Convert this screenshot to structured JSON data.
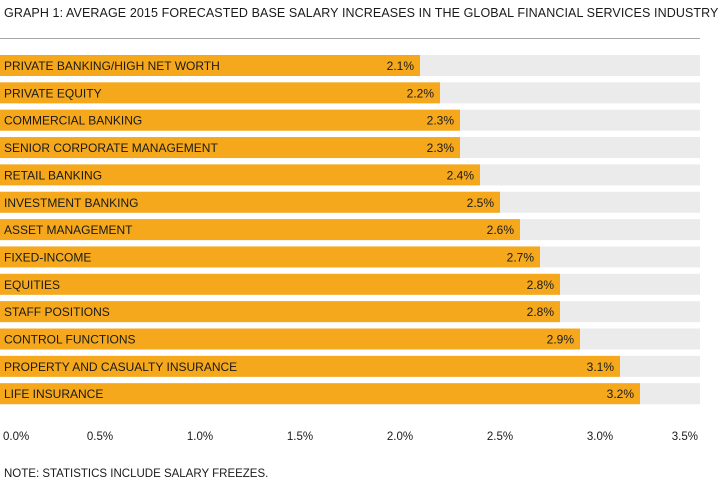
{
  "header": {
    "title": "GRAPH 1: AVERAGE 2015 FORECASTED BASE SALARY INCREASES IN THE GLOBAL FINANCIAL SERVICES INDUSTRY"
  },
  "footer": {
    "note": "NOTE: STATISTICS INCLUDE SALARY FREEZES."
  },
  "chart_data": {
    "type": "bar",
    "orientation": "horizontal",
    "title": "GRAPH 1: AVERAGE 2015 FORECASTED BASE SALARY INCREASES IN THE GLOBAL FINANCIAL SERVICES INDUSTRY",
    "xlabel": "",
    "ylabel": "",
    "xlim": [
      0,
      3.5
    ],
    "ticks": [
      0,
      0.5,
      1,
      1.5,
      2,
      2.5,
      3,
      3.5
    ],
    "tick_labels": [
      "0.0%",
      "0.5%",
      "1.0%",
      "1.5%",
      "2.0%",
      "2.5%",
      "3.0%",
      "3.5%"
    ],
    "grid": false,
    "legend": "none",
    "categories": [
      "PRIVATE BANKING/HIGH NET WORTH",
      "PRIVATE EQUITY",
      "COMMERCIAL BANKING",
      "SENIOR CORPORATE MANAGEMENT",
      "RETAIL BANKING",
      "INVESTMENT BANKING",
      "ASSET MANAGEMENT",
      "FIXED-INCOME",
      "EQUITIES",
      "STAFF POSITIONS",
      "CONTROL FUNCTIONS",
      "PROPERTY AND CASUALTY INSURANCE",
      "LIFE INSURANCE"
    ],
    "values": [
      2.1,
      2.2,
      2.3,
      2.3,
      2.4,
      2.5,
      2.6,
      2.7,
      2.8,
      2.8,
      2.9,
      3.1,
      3.2
    ],
    "value_labels": [
      "2.1%",
      "2.2%",
      "2.3%",
      "2.3%",
      "2.4%",
      "2.5%",
      "2.6%",
      "2.7%",
      "2.8%",
      "2.8%",
      "2.9%",
      "3.1%",
      "3.2%"
    ],
    "colors": {
      "bar": "#f5a81c",
      "track": "#ebebeb",
      "text": "#1a1a1a"
    }
  }
}
